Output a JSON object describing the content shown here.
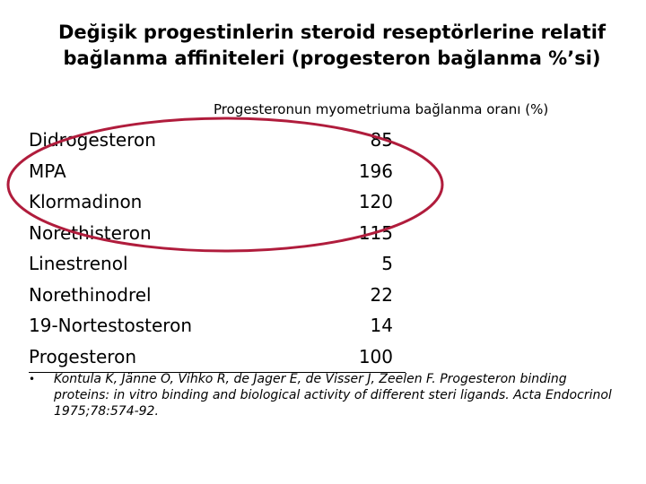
{
  "title": "Değişik progestinlerin steroid reseptörlerine relatif bağlanma affiniteleri (progesteron bağlanma %’si)",
  "subtitle": "Progesteronun myometriuma bağlanma oranı (%)",
  "rows": [
    {
      "name": "Didrogesteron",
      "value": "85"
    },
    {
      "name": "MPA",
      "value": "196"
    },
    {
      "name": "Klormadinon",
      "value": "120"
    },
    {
      "name": "Norethisteron",
      "value": "115"
    },
    {
      "name": "Linestrenol",
      "value": "5"
    },
    {
      "name": "Norethinodrel",
      "value": "22"
    },
    {
      "name": "19-Nortestosteron",
      "value": "14"
    },
    {
      "name": "Progesteron",
      "value": "100"
    }
  ],
  "highlight_color": "#b01c3c",
  "citation": {
    "bullet": "•",
    "text": "Kontula K, Jänne O, Vihko R, de Jager E, de Visser J, Zeelen F. Progesteron binding proteins: in vitro binding and biological activity of different steri ligands. Acta Endocrinol 1975;78:574-92."
  }
}
